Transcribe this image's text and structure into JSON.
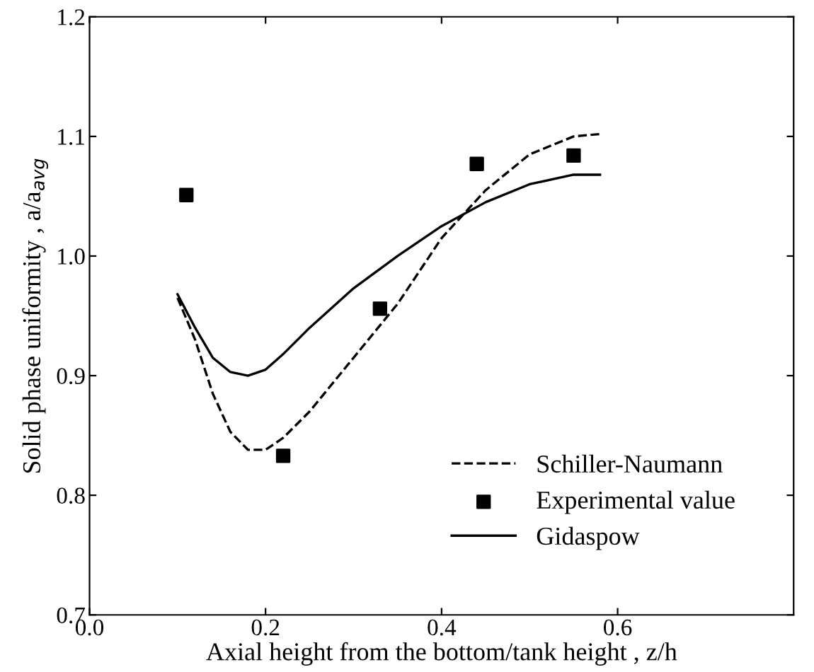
{
  "chart_data": {
    "type": "line",
    "xlabel": "Axial height from the bottom/tank height , z/h",
    "ylabel": "Solid phase uniformity , a/a$_{avg}$",
    "xlim": [
      0,
      0.8
    ],
    "xticks": [
      {
        "value": 0.0,
        "label": "0.0"
      },
      0.2,
      0.4,
      0.6
    ],
    "ylim": [
      0.7,
      1.2
    ],
    "yticks": [
      0.7,
      0.8,
      0.9,
      {
        "value": 1.0,
        "label": "1.0"
      },
      1.1,
      1.2
    ],
    "grid": false,
    "legend": "bottom right",
    "series": [
      {
        "name": "Schiller-Naumann",
        "line_style": "dashed",
        "color": "#000000",
        "x": [
          0.1,
          0.12,
          0.14,
          0.16,
          0.18,
          0.2,
          0.22,
          0.25,
          0.3,
          0.35,
          0.4,
          0.45,
          0.5,
          0.55,
          0.58
        ],
        "values": [
          0.965,
          0.93,
          0.885,
          0.853,
          0.838,
          0.838,
          0.848,
          0.87,
          0.915,
          0.96,
          1.015,
          1.055,
          1.085,
          1.1,
          1.102
        ]
      },
      {
        "name": "Experimental value",
        "type": "scatter",
        "marker": "square",
        "color": "#000000",
        "x": [
          0.11,
          0.22,
          0.33,
          0.44,
          0.55
        ],
        "values": [
          1.051,
          0.833,
          0.956,
          1.077,
          1.084
        ]
      },
      {
        "name": "Gidaspow",
        "line_style": "solid",
        "color": "#000000",
        "x": [
          0.1,
          0.12,
          0.14,
          0.16,
          0.18,
          0.2,
          0.22,
          0.25,
          0.3,
          0.35,
          0.4,
          0.45,
          0.5,
          0.55,
          0.58
        ],
        "values": [
          0.968,
          0.94,
          0.915,
          0.903,
          0.9,
          0.905,
          0.918,
          0.94,
          0.973,
          1.0,
          1.025,
          1.045,
          1.06,
          1.068,
          1.068
        ]
      }
    ]
  }
}
